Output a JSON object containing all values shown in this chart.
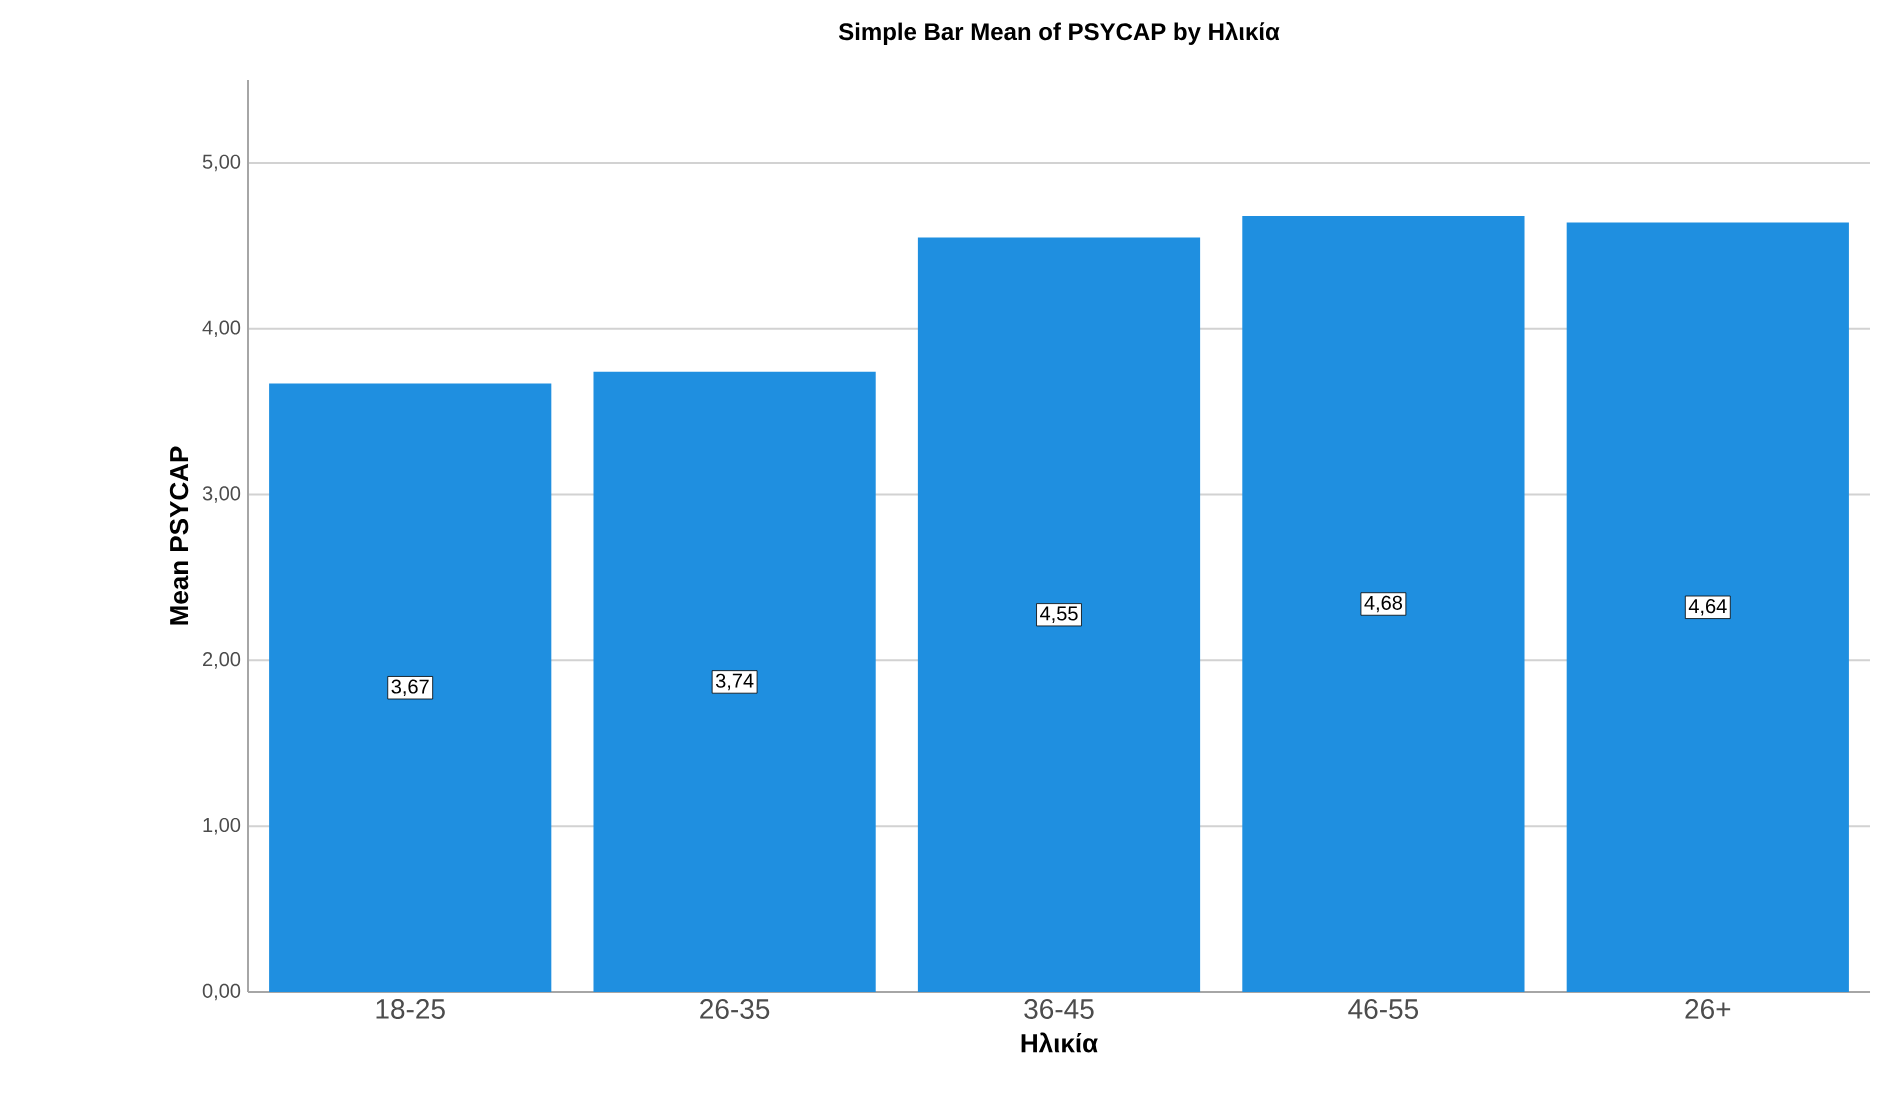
{
  "chart_data": {
    "type": "bar",
    "title": "Simple Bar Mean of PSYCAP by Ηλικία",
    "xlabel": "Ηλικία",
    "ylabel": "Mean PSYCAP",
    "categories": [
      "18-25",
      "26-35",
      "36-45",
      "46-55",
      "26+"
    ],
    "values": [
      3.67,
      3.74,
      4.55,
      4.68,
      4.64
    ],
    "value_labels": [
      "3,67",
      "3,74",
      "4,55",
      "4,68",
      "4,64"
    ],
    "color": "#1f8fe0",
    "ylim": [
      0,
      5.5
    ],
    "yticks": [
      {
        "value": 0,
        "label": "0,00"
      },
      {
        "value": 1,
        "label": "1,00"
      },
      {
        "value": 2,
        "label": "2,00"
      },
      {
        "value": 3,
        "label": "3,00"
      },
      {
        "value": 4,
        "label": "4,00"
      },
      {
        "value": 5,
        "label": "5,00"
      }
    ],
    "grid": "y"
  }
}
